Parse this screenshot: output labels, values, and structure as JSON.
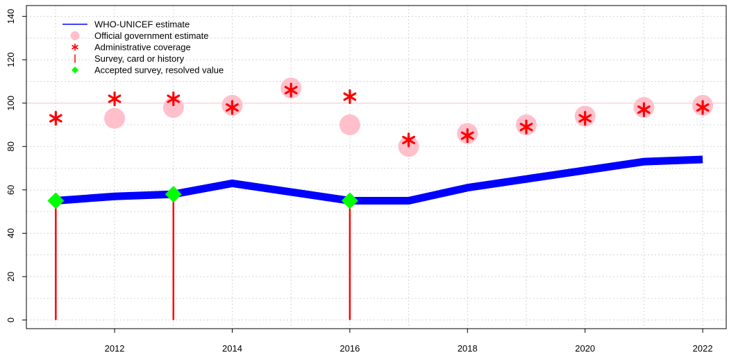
{
  "chart_data": {
    "type": "line",
    "title": "",
    "xlabel": "",
    "ylabel": "",
    "xlim": [
      2010.5,
      2022.4
    ],
    "ylim": [
      -4,
      145
    ],
    "x_ticks": [
      2012,
      2014,
      2016,
      2018,
      2020,
      2022
    ],
    "y_ticks": [
      0,
      20,
      40,
      60,
      80,
      100,
      120,
      140
    ],
    "grid": true,
    "reference_line": 100,
    "legend_position": "top-left",
    "legend": [
      {
        "label": "WHO-UNICEF estimate",
        "marker": "line",
        "color": "#0000ff"
      },
      {
        "label": "Official government estimate",
        "marker": "circle",
        "color": "#ffc0cb"
      },
      {
        "label": "Administrative coverage",
        "marker": "asterisk",
        "color": "#ff0000"
      },
      {
        "label": "Survey, card or history",
        "marker": "vline",
        "color": "#ff0000"
      },
      {
        "label": "Accepted survey, resolved value",
        "marker": "diamond",
        "color": "#00ff00"
      }
    ],
    "series": [
      {
        "key": "wuenic",
        "type": "line",
        "color": "#0000ff",
        "points": [
          [
            2011,
            55
          ],
          [
            2012,
            57
          ],
          [
            2013,
            58
          ],
          [
            2014,
            63
          ],
          [
            2015,
            59
          ],
          [
            2016,
            55
          ],
          [
            2017,
            55
          ],
          [
            2018,
            61
          ],
          [
            2019,
            65
          ],
          [
            2020,
            69
          ],
          [
            2021,
            73
          ],
          [
            2022,
            74
          ]
        ]
      },
      {
        "key": "gov",
        "type": "circle",
        "color": "#ffc0cb",
        "points": [
          [
            2012,
            93
          ],
          [
            2013,
            98
          ],
          [
            2014,
            99
          ],
          [
            2015,
            107
          ],
          [
            2016,
            90
          ],
          [
            2017,
            80
          ],
          [
            2018,
            86
          ],
          [
            2019,
            90
          ],
          [
            2020,
            94
          ],
          [
            2021,
            98
          ],
          [
            2022,
            99
          ]
        ]
      },
      {
        "key": "admin",
        "type": "asterisk",
        "color": "#ff0000",
        "points": [
          [
            2011,
            93
          ],
          [
            2012,
            102
          ],
          [
            2013,
            102
          ],
          [
            2014,
            98
          ],
          [
            2015,
            106
          ],
          [
            2016,
            103
          ],
          [
            2017,
            83
          ],
          [
            2018,
            85
          ],
          [
            2019,
            89
          ],
          [
            2020,
            93
          ],
          [
            2021,
            97
          ],
          [
            2022,
            98
          ]
        ]
      },
      {
        "key": "survey",
        "type": "vline",
        "color": "#ff0000",
        "points": [
          [
            2011,
            55
          ],
          [
            2013,
            58
          ],
          [
            2016,
            55
          ]
        ]
      },
      {
        "key": "accepted",
        "type": "diamond",
        "color": "#00ff00",
        "points": [
          [
            2011,
            55
          ],
          [
            2013,
            58
          ],
          [
            2016,
            55
          ]
        ]
      }
    ]
  }
}
